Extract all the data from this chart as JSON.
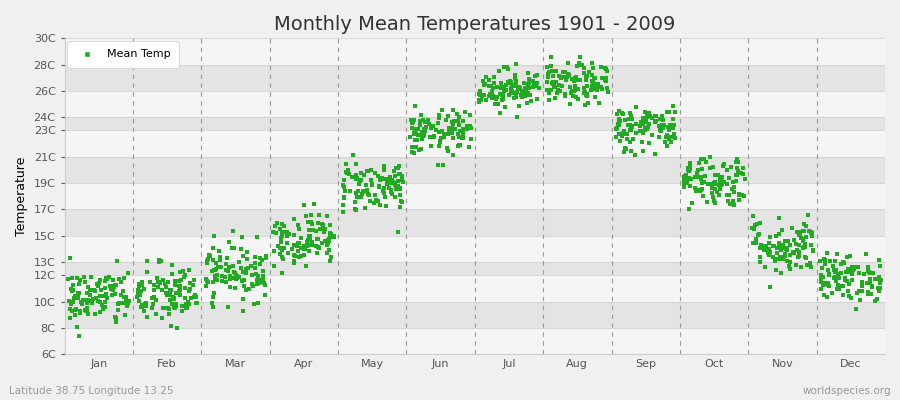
{
  "title": "Monthly Mean Temperatures 1901 - 2009",
  "ylabel": "Temperature",
  "subtitle": "Latitude 38.75 Longitude 13.25",
  "watermark": "worldspecies.org",
  "legend_label": "Mean Temp",
  "ytick_labels": [
    "6C",
    "8C",
    "10C",
    "12C",
    "13C",
    "15C",
    "17C",
    "19C",
    "21C",
    "23C",
    "24C",
    "26C",
    "28C",
    "30C"
  ],
  "ytick_values": [
    6,
    8,
    10,
    12,
    13,
    15,
    17,
    19,
    21,
    23,
    24,
    26,
    28,
    30
  ],
  "ylim": [
    6,
    30
  ],
  "months": [
    "Jan",
    "Feb",
    "Mar",
    "Apr",
    "May",
    "Jun",
    "Jul",
    "Aug",
    "Sep",
    "Oct",
    "Nov",
    "Dec"
  ],
  "n_years": 109,
  "mean_temps": [
    10.3,
    10.5,
    12.3,
    14.8,
    18.8,
    22.8,
    26.2,
    26.5,
    23.2,
    19.2,
    14.2,
    11.8
  ],
  "std_temps": [
    1.1,
    1.2,
    1.1,
    1.0,
    1.0,
    0.85,
    0.75,
    0.8,
    0.9,
    1.0,
    1.1,
    0.9
  ],
  "dot_color": "#22aa22",
  "bg_color": "#f0f0f0",
  "band_light": "#f5f5f5",
  "band_dark": "#e4e4e4",
  "dashed_line_color": "#999999",
  "title_fontsize": 14,
  "label_fontsize": 9,
  "tick_fontsize": 8,
  "marker_size": 10
}
